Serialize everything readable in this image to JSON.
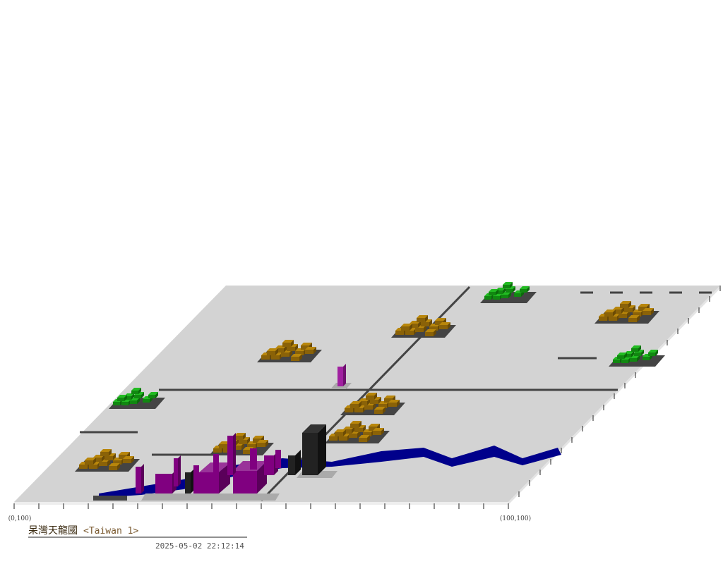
{
  "map": {
    "corner_left": "(0,100)",
    "corner_right": "(100,100)"
  },
  "caption": {
    "city_name": "呆灣天龍國",
    "scenario": "<Taiwan 1>",
    "timestamp": "2025-05-02 22:12:14"
  }
}
